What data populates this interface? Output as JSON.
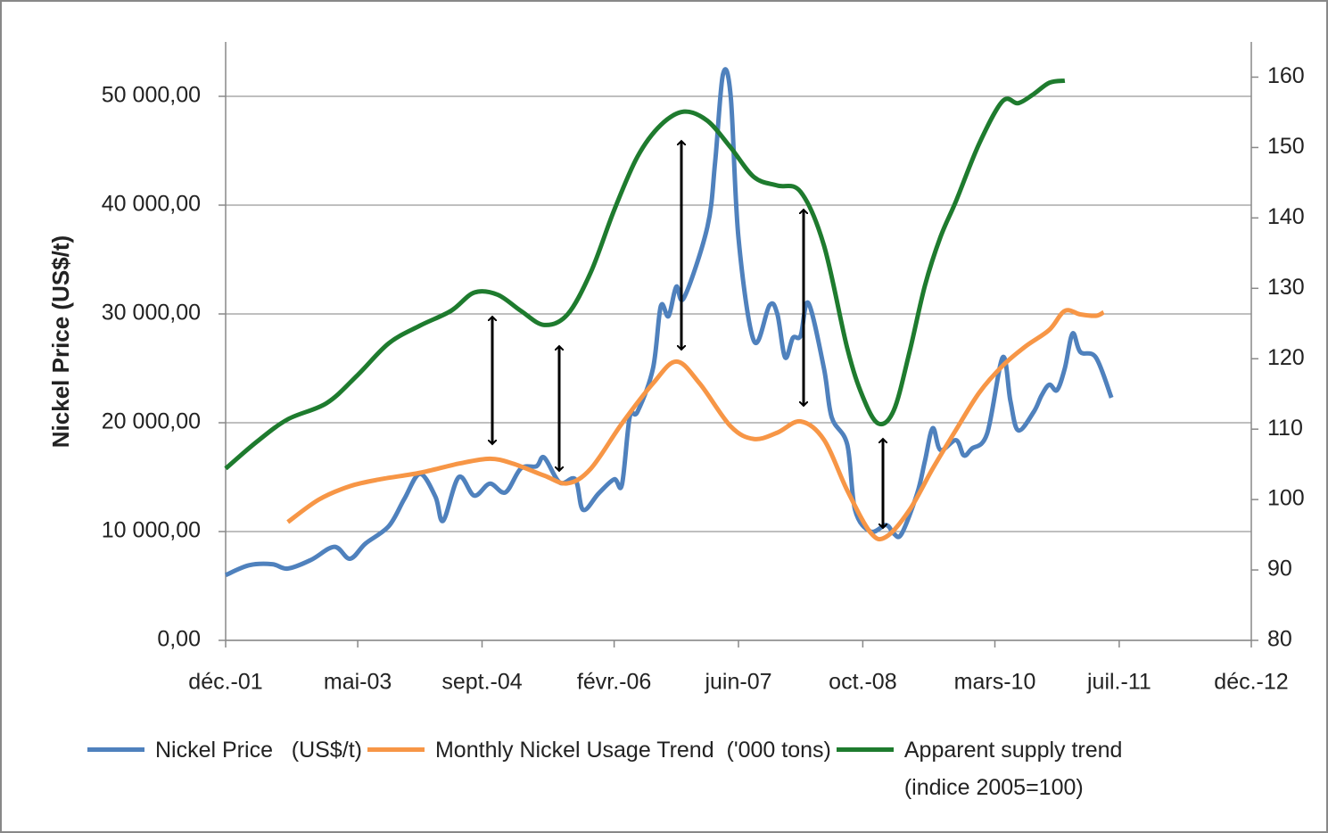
{
  "chart_data": {
    "type": "line",
    "y_axis_label": "Nickel Price (US$/t)",
    "xlim": [
      "2001-12",
      "2012-12"
    ],
    "xticks": [
      {
        "value": "2001-12",
        "label": "déc.-01"
      },
      {
        "value": "2003-05",
        "label": "mai-03"
      },
      {
        "value": "2004-09",
        "label": "sept.-04"
      },
      {
        "value": "2006-02",
        "label": "févr.-06"
      },
      {
        "value": "2007-06",
        "label": "juin-07"
      },
      {
        "value": "2008-10",
        "label": "oct.-08"
      },
      {
        "value": "2010-03",
        "label": "mars-10"
      },
      {
        "value": "2011-07",
        "label": "juil.-11"
      },
      {
        "value": "2012-12",
        "label": "déc.-12"
      }
    ],
    "ylim": [
      0,
      55000
    ],
    "yticks": [
      {
        "value": 0,
        "label": "0,00"
      },
      {
        "value": 10000,
        "label": "10 000,00"
      },
      {
        "value": 20000,
        "label": "20 000,00"
      },
      {
        "value": 30000,
        "label": "30 000,00"
      },
      {
        "value": 40000,
        "label": "40 000,00"
      },
      {
        "value": 50000,
        "label": "50 000,00"
      }
    ],
    "y2lim": [
      80,
      165
    ],
    "y2ticks": [
      80,
      90,
      100,
      110,
      120,
      130,
      140,
      150,
      160
    ],
    "grid": true,
    "legend": "bottom",
    "series": [
      {
        "name": "Nickel Price   (US$/t)",
        "color": "#4f81bd",
        "axis": "y",
        "x": [
          "2001-12",
          "2002-03",
          "2002-06",
          "2002-08",
          "2002-11",
          "2003-02",
          "2003-04",
          "2003-06",
          "2003-09",
          "2003-11",
          "2004-01",
          "2004-03",
          "2004-04",
          "2004-06",
          "2004-08",
          "2004-10",
          "2004-12",
          "2005-02",
          "2005-04",
          "2005-05",
          "2005-07",
          "2005-09",
          "2005-10",
          "2005-12",
          "2006-02",
          "2006-03",
          "2006-04",
          "2006-05",
          "2006-07",
          "2006-08",
          "2006-09",
          "2006-10",
          "2006-11",
          "2007-02",
          "2007-03",
          "2007-04",
          "2007-05",
          "2007-06",
          "2007-08",
          "2007-10",
          "2007-11",
          "2007-12",
          "2008-01",
          "2008-02",
          "2008-03",
          "2008-05",
          "2008-06",
          "2008-08",
          "2008-09",
          "2008-11",
          "2009-01",
          "2009-02",
          "2009-03",
          "2009-05",
          "2009-06",
          "2009-07",
          "2009-08",
          "2009-10",
          "2009-11",
          "2009-12",
          "2010-02",
          "2010-04",
          "2010-05",
          "2010-06",
          "2010-08",
          "2010-09",
          "2010-10",
          "2010-11",
          "2010-12",
          "2011-01",
          "2011-02",
          "2011-04",
          "2011-06"
        ],
        "values": [
          6000,
          6900,
          7000,
          6600,
          7400,
          8600,
          7500,
          8900,
          10500,
          13000,
          15300,
          13200,
          11000,
          15000,
          13300,
          14400,
          13600,
          15800,
          16000,
          16800,
          14500,
          14800,
          12000,
          13500,
          14800,
          14300,
          20500,
          21000,
          25000,
          30700,
          29800,
          32500,
          31500,
          38000,
          44000,
          52000,
          50000,
          37000,
          27500,
          30800,
          30000,
          26000,
          27800,
          28000,
          31000,
          25000,
          20500,
          18000,
          12000,
          10000,
          10600,
          9800,
          9800,
          13500,
          16500,
          19500,
          17500,
          18400,
          17000,
          17600,
          19000,
          26000,
          22000,
          19300,
          21000,
          22500,
          23500,
          23000,
          25000,
          28200,
          26500,
          26000,
          22300
        ]
      },
      {
        "name": "Monthly Nickel Usage Trend  ('000 tons)",
        "color": "#f79646",
        "axis": "y2",
        "x": [
          "2002-08",
          "2002-12",
          "2003-04",
          "2003-08",
          "2004-01",
          "2004-06",
          "2004-10",
          "2005-01",
          "2005-05",
          "2005-08",
          "2005-11",
          "2006-03",
          "2006-07",
          "2006-10",
          "2007-01",
          "2007-05",
          "2007-08",
          "2007-11",
          "2008-02",
          "2008-05",
          "2008-08",
          "2008-11",
          "2009-01",
          "2009-04",
          "2009-07",
          "2009-10",
          "2010-01",
          "2010-04",
          "2010-07",
          "2010-10",
          "2010-12",
          "2011-02",
          "2011-04",
          "2011-05"
        ],
        "values": [
          96.8,
          100,
          101.9,
          102.9,
          103.8,
          105.1,
          105.8,
          105.1,
          103.4,
          102.3,
          104.4,
          110.8,
          116.5,
          119.6,
          116.5,
          110.4,
          108.6,
          109.5,
          111.1,
          108.5,
          101.3,
          95.3,
          94.7,
          98.5,
          104.4,
          109.9,
          115.2,
          119,
          121.8,
          124.1,
          126.8,
          126.3,
          126.1,
          126.6
        ]
      },
      {
        "name": "Apparent supply trend (indice 2005=100)",
        "color": "#1e7b2e",
        "axis": "y2",
        "x": [
          "2001-12",
          "2002-04",
          "2002-08",
          "2003-01",
          "2003-05",
          "2003-09",
          "2004-01",
          "2004-05",
          "2004-08",
          "2004-11",
          "2005-02",
          "2005-05",
          "2005-08",
          "2005-11",
          "2006-02",
          "2006-05",
          "2006-08",
          "2006-11",
          "2007-02",
          "2007-05",
          "2007-08",
          "2007-11",
          "2008-02",
          "2008-05",
          "2008-08",
          "2008-10",
          "2008-12",
          "2009-02",
          "2009-04",
          "2009-06",
          "2009-08",
          "2009-10",
          "2010-01",
          "2010-04",
          "2010-06",
          "2010-08",
          "2010-10",
          "2010-12"
        ],
        "values": [
          104.4,
          108.2,
          111.4,
          113.7,
          117.7,
          122.2,
          124.7,
          126.8,
          129.4,
          129.1,
          126.8,
          124.8,
          126.3,
          132.3,
          141.1,
          148.7,
          153.2,
          155.1,
          153.8,
          150,
          145.8,
          144.6,
          143.7,
          136.1,
          121.5,
          114.6,
          110.8,
          112.7,
          120.9,
          130.4,
          137.3,
          142.4,
          150.6,
          156.6,
          156.3,
          157.6,
          159.2,
          159.5
        ]
      }
    ]
  }
}
